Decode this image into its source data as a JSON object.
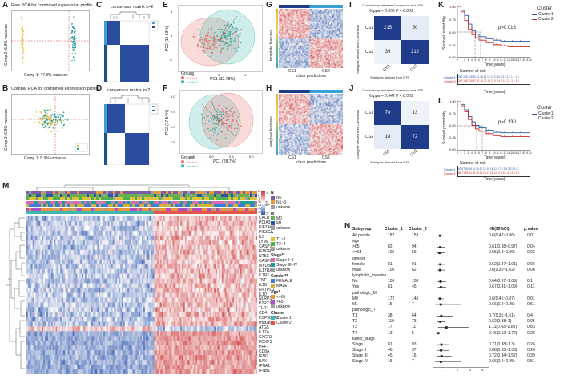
{
  "panel_labels": [
    "A",
    "B",
    "C",
    "D",
    "E",
    "F",
    "G",
    "H",
    "I",
    "J",
    "K",
    "L",
    "M",
    "N"
  ],
  "colors": {
    "cluster1": "#e8736a",
    "cluster2": "#3fb8b0",
    "navy": "#1f3b8a",
    "red": "#c8302e",
    "blue": "#2f56a6",
    "yellow": "#e0c13a",
    "teal": "#1f9c94"
  },
  "panelA": {
    "title": "Raw PCA for combined expression profile",
    "xlabel": "Comp 1: 47.8% variance",
    "ylabel": "Comp 2: 5.8% variance"
  },
  "panelB": {
    "title": "Combat PCA for combined expression profile",
    "xlabel": "Comp 1: 8.9% variance",
    "ylabel": "Comp 2: 6.8% variance"
  },
  "panelC": {
    "title": "consensus matrix k=2"
  },
  "panelD": {
    "title": "consensus matrix k=2"
  },
  "panelE": {
    "xlabel": "PC1 (32.78%)",
    "ylabel": "PC2 (13.63%)",
    "xticks": [
      "-4",
      "0",
      "4"
    ],
    "yticks": [
      "5",
      "0",
      "-5"
    ],
    "legend_title": "Groups",
    "legend": [
      "Cluster1",
      "Cluster2"
    ]
  },
  "panelF": {
    "xlabel": "PC1 (28.7%)",
    "ylabel": "PC2 (17.54%)",
    "xticks": [
      "-2.5",
      "0.0",
      "2.5",
      "5.0"
    ],
    "yticks": [
      "5.0",
      "2.5",
      "0.0",
      "-2.5"
    ],
    "legend_title": "Groups",
    "legend": [
      "Cluster1",
      "Cluster2"
    ]
  },
  "panelG": {
    "ylabel": "template features",
    "xlabel": "class predictions",
    "ticks": [
      "CS1",
      "CS2"
    ]
  },
  "panelH": {
    "ylabel": "template features",
    "xlabel": "class predictions",
    "ticks": [
      "CS1",
      "CS2"
    ]
  },
  "panelI": {
    "title": "Consistency between Consensus and NTP",
    "kappa": "Kappa = 0.655  P < 0.001",
    "ylabel": "Subtypes derived from Consensus",
    "xlabel": "Subtypes derived from NTP",
    "rows": [
      "CS1",
      "CS2"
    ],
    "cols": [
      "CS1",
      "CS2"
    ],
    "cells": [
      "215",
      "50",
      "39",
      "212"
    ]
  },
  "panelJ": {
    "title": "Consistency between Consensus and NTP",
    "kappa": "Kappa = 0.642  P < 0.001",
    "ylabel": "Subtypes derived from Consensus",
    "xlabel": "Subtypes derived from NTP",
    "rows": [
      "CS1",
      "CS2"
    ],
    "cols": [
      "CS1",
      "CS2"
    ],
    "cells": [
      "70",
      "13",
      "18",
      "72"
    ]
  },
  "panelK": {
    "ylabel": "Survival probability",
    "xlabel": "Time(years)",
    "pvalue": "p=0.013",
    "legend_title": "Cluster",
    "legend": [
      "Cluster1",
      "Cluster2"
    ],
    "yticks": [
      "1.00",
      "0.75",
      "0.50",
      "0.25",
      "0.00"
    ],
    "xticks": [
      "0",
      "1",
      "2",
      "3",
      "4",
      "5",
      "6",
      "7",
      "8",
      "9",
      "10",
      "11",
      "12",
      "13",
      "14",
      "15",
      "16",
      "17",
      "18",
      "19",
      "20"
    ],
    "risk_title": "Number at risk",
    "risk_labels": [
      "Cluster1",
      "Cluster2"
    ],
    "risk_row1": "262 205 118 80 41 28 24 17 11 9 4 4 3 3 3 2 2 1 1 1 0",
    "risk_row2": "249 198 108 67 41 30 20 16 11 9 7 4 3 3 2 2 2 1 1 1 0",
    "risk_xlabel": "Time(years)"
  },
  "panelL": {
    "ylabel": "Survival probability",
    "xlabel": "Time(years)",
    "pvalue": "p=0.130",
    "legend_title": "Cluster",
    "legend": [
      "Cluster1",
      "Cluster2"
    ],
    "yticks": [
      "1.00",
      "0.75",
      "0.50",
      "0.25",
      "0.00"
    ],
    "xticks": [
      "0",
      "1",
      "2",
      "3",
      "4",
      "5",
      "6",
      "7",
      "8",
      "9",
      "10",
      "11",
      "12",
      "13",
      "14",
      "15",
      "16",
      "17",
      "18",
      "19",
      "20"
    ],
    "risk_title": "Number at risk",
    "risk_labels": [
      "Cluster1",
      "Cluster2"
    ],
    "risk_row1": "83 67 50 38 31 25 21 18 16 14 12 8 7 6 5 4 3 2 2 1 0",
    "risk_row2": "86 71 55 44 35 29 24 20 17 15 13 10 8 6 5 4 3 2 2 1 0",
    "risk_xlabel": "Time(years)"
  },
  "panelM": {
    "track_labels": [
      "N",
      "M",
      "T",
      "Stage**",
      "Gender**",
      "Age*",
      "Cluster"
    ],
    "genes": [
      "CALR",
      "PDIA3",
      "EIF2AK3",
      "PIK3CA",
      "IL6",
      "LY96",
      "CASP1",
      "IFNGR1",
      "NT5E",
      "CASP8",
      "MYD88",
      "IL17RA",
      "IL1R1",
      "TNF",
      "IL1B",
      "ENTPD1",
      "IL10",
      "NLRP3",
      "P2RX7",
      "TLR4",
      "CD4",
      "HSP90AA1",
      "HMGB1",
      "ATG5",
      "IL17A",
      "CXCR3",
      "FOXP3",
      "PRF1",
      "CD8A",
      "IFNG",
      "BAX",
      "IFNA1",
      "IFNB1"
    ],
    "scale": [
      "2",
      "0",
      "-2"
    ],
    "legend": [
      {
        "title": "N",
        "items": [
          {
            "label": "N0",
            "color": "#7b5ea7"
          },
          {
            "label": "N1~3",
            "color": "#e8973a"
          },
          {
            "label": "unknow",
            "color": "#9e9e9e"
          }
        ]
      },
      {
        "title": "M",
        "items": [
          {
            "label": "M0",
            "color": "#6ab04c"
          },
          {
            "label": "M1",
            "color": "#2f56a6"
          },
          {
            "label": "unknow",
            "color": "#9e9e9e"
          }
        ]
      },
      {
        "title": "T",
        "items": [
          {
            "label": "T1~2",
            "color": "#e0c13a"
          },
          {
            "label": "T3~4",
            "color": "#4caf50"
          },
          {
            "label": "unknow",
            "color": "#9e9e9e"
          }
        ]
      },
      {
        "title": "Stage**",
        "items": [
          {
            "label": "Stage I~II",
            "color": "#d86bb5"
          },
          {
            "label": "Stage III~IV",
            "color": "#1f9c94"
          },
          {
            "label": "unknow",
            "color": "#9e9e9e"
          }
        ]
      },
      {
        "title": "Gender**",
        "items": [
          {
            "label": "FEMALE",
            "color": "#3b7dd8"
          },
          {
            "label": "MALE",
            "color": "#d4b13a"
          }
        ]
      },
      {
        "title": "Age*",
        "items": [
          {
            "label": "<=65",
            "color": "#e8973a"
          },
          {
            "label": ">65",
            "color": "#b04fc0"
          },
          {
            "label": "unknow",
            "color": "#9e9e9e"
          }
        ]
      },
      {
        "title": "Cluster",
        "items": [
          {
            "label": "Cluster1",
            "color": "#3fb8b0"
          },
          {
            "label": "Cluster2",
            "color": "#e8534a"
          }
        ]
      }
    ]
  },
  "panelN": {
    "headers": [
      "Subgroup",
      "Cluster_1",
      "Cluster_2",
      "",
      "HR(95%CI)",
      "p.value"
    ],
    "rows": [
      {
        "s": "All people",
        "a": "187",
        "b": "153",
        "hr": "0.6(0.42~0.86)",
        "p": "0.01",
        "est": 0.6,
        "lo": 0.42,
        "hi": 0.86
      },
      {
        "s": "age",
        "a": "",
        "b": "",
        "hr": "",
        "p": ""
      },
      {
        "s": ">65",
        "a": "82",
        "b": "94",
        "hr": "0.61(0.38~0.97)",
        "p": "0.04",
        "est": 0.61,
        "lo": 0.38,
        "hi": 0.97
      },
      {
        "s": "<=65",
        "a": "105",
        "b": "59",
        "hr": "0.55(0.3~0.99)",
        "p": "0.03",
        "est": 0.55,
        "lo": 0.3,
        "hi": 0.99
      },
      {
        "s": "gender",
        "a": "",
        "b": "",
        "hr": "",
        "p": ""
      },
      {
        "s": "female",
        "a": "81",
        "b": "91",
        "hr": "0.62(0.37~1.01)",
        "p": "0.06",
        "est": 0.62,
        "lo": 0.37,
        "hi": 1.01
      },
      {
        "s": "male",
        "a": "106",
        "b": "62",
        "hr": "0.6(0.35~1.02)",
        "p": "0.06",
        "est": 0.6,
        "lo": 0.35,
        "hi": 1.02
      },
      {
        "s": "lymphatic_invasion",
        "a": "",
        "b": "",
        "hr": "",
        "p": ""
      },
      {
        "s": "No",
        "a": "106",
        "b": "108",
        "hr": "0.64(0.37~1.09)",
        "p": "0.1",
        "est": 0.64,
        "lo": 0.37,
        "hi": 1.09
      },
      {
        "s": "Yes",
        "a": "81",
        "b": "45",
        "hr": "0.67(0.41~1.09)",
        "p": "0.11",
        "est": 0.67,
        "lo": 0.41,
        "hi": 1.09
      },
      {
        "s": "pathologic_M",
        "a": "",
        "b": "",
        "hr": "",
        "p": ""
      },
      {
        "s": "M0",
        "a": "172",
        "b": "146",
        "hr": "0.6(0.41~0.87)",
        "p": "0.01",
        "est": 0.6,
        "lo": 0.41,
        "hi": 0.87
      },
      {
        "s": "M1",
        "a": "15",
        "b": "7",
        "hr": "0.66(0.2~2.25)",
        "p": "0.51",
        "est": 0.66,
        "lo": 0.2,
        "hi": 2.25
      },
      {
        "s": "pathologic_T",
        "a": "",
        "b": "",
        "hr": "",
        "p": ""
      },
      {
        "s": "T1",
        "a": "38",
        "b": "64",
        "hr": "0.7(0.31~1.61)",
        "p": "0.4",
        "est": 0.7,
        "lo": 0.31,
        "hi": 1.61
      },
      {
        "s": "T2",
        "a": "119",
        "b": "73",
        "hr": "0.62(0.38~1)",
        "p": "0.05",
        "est": 0.62,
        "lo": 0.38,
        "hi": 1.0
      },
      {
        "s": "T3",
        "a": "17",
        "b": "11",
        "hr": "1.11(0.43~2.88)",
        "p": "0.83",
        "est": 1.11,
        "lo": 0.43,
        "hi": 2.88
      },
      {
        "s": "T4",
        "a": "13",
        "b": "5",
        "hr": "0.46(0.12~1.72)",
        "p": "0.25",
        "est": 0.46,
        "lo": 0.12,
        "hi": 1.72
      },
      {
        "s": "tumor_stage",
        "a": "",
        "b": "",
        "hr": "",
        "p": ""
      },
      {
        "s": "Stage I",
        "a": "81",
        "b": "93",
        "hr": "0.71(0.38~1.3)",
        "p": "0.26",
        "est": 0.71,
        "lo": 0.38,
        "hi": 1.3
      },
      {
        "s": "Stage II",
        "a": "46",
        "b": "37",
        "hr": "0.68(0.35~1.33)",
        "p": "0.26",
        "est": 0.68,
        "lo": 0.35,
        "hi": 1.33
      },
      {
        "s": "Stage III",
        "a": "45",
        "b": "16",
        "hr": "0.72(0.34~1.52)",
        "p": "0.39",
        "est": 0.72,
        "lo": 0.34,
        "hi": 1.52
      },
      {
        "s": "Stage IV",
        "a": "15",
        "b": "7",
        "hr": "0.66(0.2~2.25)",
        "p": "0.51",
        "est": 0.66,
        "lo": 0.2,
        "hi": 2.25
      }
    ],
    "axis_ticks": [
      "1",
      "2",
      "3",
      "4"
    ]
  },
  "chart_data": [
    {
      "type": "scatter",
      "panel": "A",
      "title": "Raw PCA for combined expression profile",
      "xlabel": "Comp 1: 47.8% variance",
      "ylabel": "Comp 2: 5.8% variance",
      "series": [
        {
          "name": "Dataset 1",
          "color": "#e0c13a"
        },
        {
          "name": "Dataset 2",
          "color": "#1f9c94"
        }
      ]
    },
    {
      "type": "scatter",
      "panel": "B",
      "title": "Combat PCA for combined expression profile",
      "xlabel": "Comp 1: 8.9% variance",
      "ylabel": "Comp 2: 6.8% variance"
    },
    {
      "type": "heatmap",
      "panel": "C",
      "title": "consensus matrix k=2"
    },
    {
      "type": "heatmap",
      "panel": "D",
      "title": "consensus matrix k=2"
    },
    {
      "type": "scatter",
      "panel": "E",
      "xlabel": "PC1 (32.78%)",
      "ylabel": "PC2 (13.63%)",
      "legend": [
        "Cluster1",
        "Cluster2"
      ]
    },
    {
      "type": "scatter",
      "panel": "F",
      "xlabel": "PC1 (28.7%)",
      "ylabel": "PC2 (17.54%)",
      "legend": [
        "Cluster1",
        "Cluster2"
      ]
    },
    {
      "type": "heatmap",
      "panel": "I",
      "categories": [
        "CS1",
        "CS2"
      ],
      "values": [
        [
          215,
          50
        ],
        [
          39,
          212
        ]
      ],
      "title": "Kappa = 0.655"
    },
    {
      "type": "heatmap",
      "panel": "J",
      "categories": [
        "CS1",
        "CS2"
      ],
      "values": [
        [
          70,
          13
        ],
        [
          18,
          72
        ]
      ],
      "title": "Kappa = 0.642"
    },
    {
      "type": "line",
      "panel": "K",
      "xlabel": "Time(years)",
      "ylabel": "Survival probability",
      "xlim": [
        0,
        20
      ],
      "ylim": [
        0,
        1
      ],
      "series": [
        {
          "name": "Cluster1",
          "color": "#2f56a6",
          "x": [
            0,
            1,
            2,
            3,
            4,
            5,
            6,
            8,
            10,
            12,
            14,
            16,
            20
          ],
          "y": [
            1.0,
            0.92,
            0.82,
            0.65,
            0.52,
            0.45,
            0.4,
            0.36,
            0.33,
            0.31,
            0.31,
            0.31,
            0.31
          ]
        },
        {
          "name": "Cluster2",
          "color": "#c8302e",
          "x": [
            0,
            1,
            2,
            3,
            4,
            5,
            6,
            8,
            10,
            12,
            14,
            16,
            20
          ],
          "y": [
            1.0,
            0.89,
            0.72,
            0.55,
            0.44,
            0.38,
            0.33,
            0.28,
            0.24,
            0.22,
            0.2,
            0.2,
            0.2
          ]
        }
      ]
    },
    {
      "type": "line",
      "panel": "L",
      "xlabel": "Time(years)",
      "ylabel": "Survival probability",
      "xlim": [
        0,
        20
      ],
      "ylim": [
        0,
        1
      ],
      "series": [
        {
          "name": "Cluster1",
          "color": "#2f56a6",
          "x": [
            0,
            1,
            2,
            3,
            4,
            5,
            6,
            8,
            10,
            12,
            16,
            20
          ],
          "y": [
            1.0,
            0.93,
            0.82,
            0.68,
            0.57,
            0.5,
            0.45,
            0.4,
            0.36,
            0.35,
            0.35,
            0.35
          ]
        },
        {
          "name": "Cluster2",
          "color": "#c8302e",
          "x": [
            0,
            1,
            2,
            3,
            4,
            5,
            6,
            8,
            10,
            12,
            16,
            20
          ],
          "y": [
            1.0,
            0.9,
            0.78,
            0.62,
            0.5,
            0.43,
            0.38,
            0.33,
            0.29,
            0.27,
            0.27,
            0.27
          ]
        }
      ]
    },
    {
      "type": "table",
      "panel": "N",
      "title": "Forest plot HR(95%CI)"
    }
  ]
}
